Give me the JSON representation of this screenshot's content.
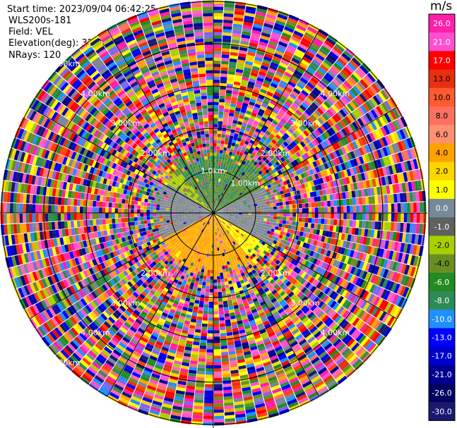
{
  "header": {
    "start_time": "Start time: 2023/09/04 06:42:25",
    "instrument": "WLS200s-181",
    "field": "Field: VEL",
    "elevation": "Elevation(deg): 35.30",
    "nrays": "NRays: 120"
  },
  "chart_data": {
    "type": "heatmap",
    "subtype": "polar-ppi",
    "field": "VEL",
    "units": "m/s",
    "n_rays": 120,
    "range_rings": [
      {
        "label": "1.0km",
        "km": 1.0
      },
      {
        "label": "1.00km",
        "km": 1.0
      },
      {
        "label": "2.00km",
        "km": 2.0
      },
      {
        "label": "3.00km",
        "km": 3.0
      },
      {
        "label": "4.00km",
        "km": 4.0
      },
      {
        "label": "5.00km",
        "km": 5.0
      }
    ],
    "max_range_km": 5.0,
    "colorbar": {
      "title": "m/s",
      "ticks": [
        "26.0",
        "21.0",
        "17.0",
        "13.0",
        "10.0",
        "8.0",
        "6.0",
        "4.0",
        "2.0",
        "1.0",
        "0.0",
        "-1.0",
        "-2.0",
        "-4.0",
        "-6.0",
        "-8.0",
        "-10.0",
        "-13.0",
        "-17.0",
        "-21.0",
        "-26.0",
        "-30.0"
      ],
      "colors": [
        "#ff1fa8",
        "#ff4fd0",
        "#ff0000",
        "#e83010",
        "#ff5a30",
        "#ff7060",
        "#ff9070",
        "#ffa200",
        "#ffd500",
        "#ffff00",
        "#778899",
        "#606060",
        "#a8d000",
        "#6b8e23",
        "#228b22",
        "#2e8b57",
        "#1e90ff",
        "#0000ff",
        "#0000cd",
        "#000090",
        "#000060",
        "#191970"
      ]
    }
  }
}
